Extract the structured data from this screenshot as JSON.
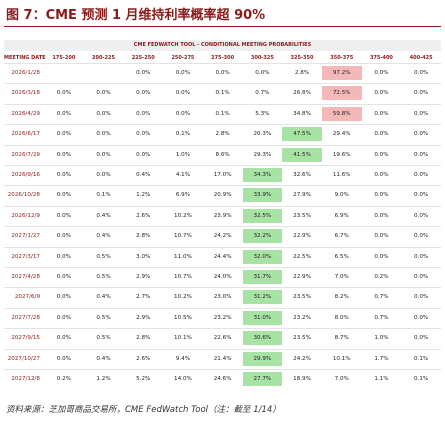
{
  "header": {
    "title": "图 7：CME 预测 1 月维持利率概率超 90%"
  },
  "table": {
    "banner": "CME FEDWATCH TOOL - CONDITIONAL MEETING PROBABILITIES",
    "columns": [
      "MEETING DATE",
      "175-200",
      "200-225",
      "225-250",
      "250-275",
      "275-300",
      "300-325",
      "325-350",
      "350-375",
      "375-400",
      "400-425"
    ],
    "rows": [
      [
        "2026/1/28",
        null,
        null,
        "0.0%",
        "0.0%",
        "0.0%",
        "0.0%",
        "2.8%",
        "97.2%",
        "0.0%",
        "0.0%"
      ],
      [
        "2026/3/18",
        "0.0%",
        "0.0%",
        "0.0%",
        "0.0%",
        "0.1%",
        "0.7%",
        "26.8%",
        "72.5%",
        "0.0%",
        "0.0%"
      ],
      [
        "2026/4/29",
        "0.0%",
        "0.0%",
        "0.0%",
        "0.0%",
        "0.1%",
        "5.3%",
        "34.8%",
        "59.8%",
        "0.0%",
        "0.0%"
      ],
      [
        "2026/6/17",
        "0.0%",
        "0.0%",
        "0.0%",
        "0.1%",
        "2.8%",
        "20.3%",
        "47.5%",
        "29.4%",
        "0.0%",
        "0.0%"
      ],
      [
        "2026/7/29",
        "0.0%",
        "0.0%",
        "0.0%",
        "1.0%",
        "8.6%",
        "29.3%",
        "41.5%",
        "19.6%",
        "0.0%",
        "0.0%"
      ],
      [
        "2026/9/16",
        "0.0%",
        "0.0%",
        "0.4%",
        "4.1%",
        "17.0%",
        "34.3%",
        "32.6%",
        "11.6%",
        "0.0%",
        "0.0%"
      ],
      [
        "2026/10/28",
        "0.0%",
        "0.1%",
        "1.2%",
        "6.9%",
        "20.9%",
        "33.9%",
        "27.9%",
        "9.0%",
        "0.0%",
        "0.0%"
      ],
      [
        "2026/12/9",
        "0.0%",
        "0.4%",
        "2.6%",
        "10.2%",
        "23.9%",
        "32.5%",
        "23.5%",
        "6.9%",
        "0.0%",
        "0.0%"
      ],
      [
        "2027/1/27",
        "0.0%",
        "0.4%",
        "2.8%",
        "10.7%",
        "24.2%",
        "32.2%",
        "22.9%",
        "6.7%",
        "0.0%",
        "0.0%"
      ],
      [
        "2027/3/17",
        "0.0%",
        "0.5%",
        "3.0%",
        "11.0%",
        "24.4%",
        "32.0%",
        "22.5%",
        "6.5%",
        "0.0%",
        "0.0%"
      ],
      [
        "2027/4/28",
        "0.0%",
        "0.5%",
        "2.9%",
        "10.7%",
        "24.0%",
        "31.7%",
        "22.9%",
        "7.0%",
        "0.2%",
        "0.0%"
      ],
      [
        "2027/6/9",
        "0.0%",
        "0.4%",
        "2.7%",
        "10.2%",
        "23.0%",
        "31.2%",
        "23.5%",
        "8.2%",
        "0.7%",
        "0.0%"
      ],
      [
        "2027/7/28",
        "0.0%",
        "0.5%",
        "2.9%",
        "10.5%",
        "23.2%",
        "31.0%",
        "23.2%",
        "8.0%",
        "0.7%",
        "0.0%"
      ],
      [
        "2027/9/15",
        "0.0%",
        "0.5%",
        "2.8%",
        "10.1%",
        "22.6%",
        "30.6%",
        "23.5%",
        "8.7%",
        "1.0%",
        "0.0%"
      ],
      [
        "2027/10/27",
        "0.0%",
        "0.4%",
        "2.6%",
        "9.4%",
        "21.4%",
        "29.9%",
        "24.2%",
        "10.1%",
        "1.7%",
        "0.1%"
      ],
      [
        "2027/12/8",
        "0.2%",
        "1.2%",
        "5.2%",
        "14.0%",
        "24.6%",
        "27.7%",
        "18.9%",
        "7.0%",
        "1.1%",
        "0.1%"
      ]
    ],
    "highlight_colors": {
      "current": "#f5b8b8",
      "other": "#a8e2a4"
    }
  },
  "footer": {
    "source": "资料来源：芝加哥商品交易所，CME FedWatch Tool（注：截至 1/14）"
  }
}
